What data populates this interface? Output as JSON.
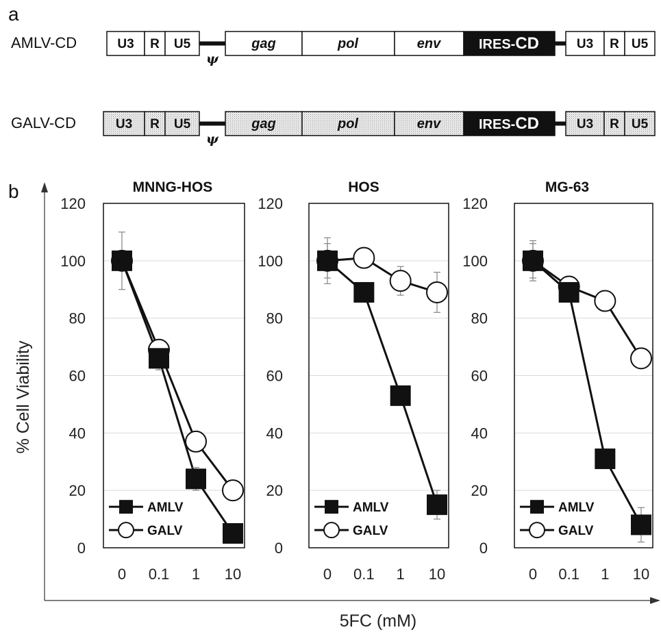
{
  "panel_a": {
    "letter": "a",
    "constructs": [
      {
        "name": "AMLV-CD",
        "shaded": false,
        "segments": {
          "ltr5_u3": "U3",
          "ltr5_r": "R",
          "ltr5_u5": "U5",
          "psi": "ψ",
          "gag": "gag",
          "pol": "pol",
          "env": "env",
          "ires": "IRES-",
          "cd": "CD",
          "ltr3_u3": "U3",
          "ltr3_r": "R",
          "ltr3_u5": "U5"
        }
      },
      {
        "name": "GALV-CD",
        "shaded": true,
        "segments": {
          "ltr5_u3": "U3",
          "ltr5_r": "R",
          "ltr5_u5": "U5",
          "psi": "ψ",
          "gag": "gag",
          "pol": "pol",
          "env": "env",
          "ires": "IRES-",
          "cd": "CD",
          "ltr3_u3": "U3",
          "ltr3_r": "R",
          "ltr3_u5": "U5"
        }
      }
    ]
  },
  "panel_b": {
    "letter": "b",
    "ylabel": "% Cell Viability",
    "xlabel": "5FC (mM)",
    "colors": {
      "amlv": "#111111",
      "galv": "#ffffff",
      "grid": "#d9d9d9",
      "errorbar": "#8c8c8c"
    }
  },
  "chart_data": [
    {
      "type": "line",
      "title": "MNNG-HOS",
      "categories": [
        "0",
        "0.1",
        "1",
        "10"
      ],
      "ylim": [
        0,
        120
      ],
      "yticks": [
        "0",
        "20",
        "40",
        "60",
        "80",
        "100",
        "120"
      ],
      "grid": true,
      "legend": "bottom-left",
      "series": [
        {
          "name": "AMLV",
          "marker": "square",
          "values": [
            100,
            66,
            24,
            5
          ],
          "errors": [
            10,
            4,
            4,
            1
          ]
        },
        {
          "name": "GALV",
          "marker": "circle",
          "values": [
            100,
            69,
            37,
            20
          ],
          "errors": [
            3,
            2,
            2,
            1
          ]
        }
      ]
    },
    {
      "type": "line",
      "title": "HOS",
      "categories": [
        "0",
        "0.1",
        "1",
        "10"
      ],
      "ylim": [
        0,
        120
      ],
      "yticks": [
        "0",
        "20",
        "40",
        "60",
        "80",
        "100",
        "120"
      ],
      "grid": true,
      "legend": "bottom-left",
      "series": [
        {
          "name": "AMLV",
          "marker": "square",
          "values": [
            100,
            89,
            53,
            15
          ],
          "errors": [
            8,
            2,
            2,
            5
          ]
        },
        {
          "name": "GALV",
          "marker": "circle",
          "values": [
            100,
            101,
            93,
            89
          ],
          "errors": [
            6,
            1,
            5,
            7
          ]
        }
      ]
    },
    {
      "type": "line",
      "title": "MG-63",
      "categories": [
        "0",
        "0.1",
        "1",
        "10"
      ],
      "ylim": [
        0,
        120
      ],
      "yticks": [
        "0",
        "20",
        "40",
        "60",
        "80",
        "100",
        "120"
      ],
      "grid": true,
      "legend": "bottom-left",
      "series": [
        {
          "name": "AMLV",
          "marker": "square",
          "values": [
            100,
            89,
            31,
            8
          ],
          "errors": [
            7,
            2,
            2,
            6
          ]
        },
        {
          "name": "GALV",
          "marker": "circle",
          "values": [
            100,
            91,
            86,
            66
          ],
          "errors": [
            6,
            2,
            1,
            1
          ]
        }
      ]
    }
  ]
}
